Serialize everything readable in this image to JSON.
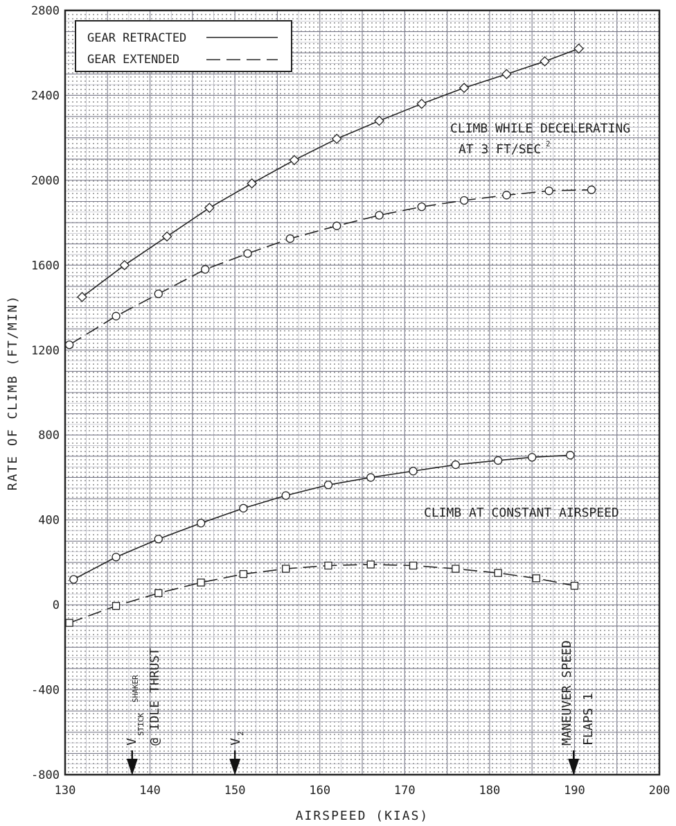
{
  "chart_data": {
    "type": "line",
    "xlabel": "AIRSPEED (KIAS)",
    "ylabel": "RATE OF CLIMB (FT/MIN)",
    "xlim": [
      130,
      200
    ],
    "ylim": [
      -800,
      2800
    ],
    "x_ticks": [
      "130",
      "140",
      "150",
      "160",
      "170",
      "180",
      "190",
      "200"
    ],
    "y_ticks": [
      "-800",
      "-400",
      "0",
      "400",
      "800",
      "1200",
      "1600",
      "2000",
      "2400",
      "2800"
    ],
    "grid": true,
    "legend_position": "top-left",
    "legend": [
      {
        "label": "GEAR RETRACTED",
        "style": "solid"
      },
      {
        "label": "GEAR EXTENDED",
        "style": "dashed"
      }
    ],
    "annotations": {
      "decel_line1": "CLIMB WHILE DECELERATING",
      "decel_line2": "AT 3 FT/SEC",
      "decel_sup": "2",
      "constant": "CLIMB AT CONSTANT AIRSPEED",
      "v_stick": "V",
      "v_stick_sub1": "STICK",
      "v_stick_sub2": "SHAKER",
      "idle_thrust": "@ IDLE THRUST",
      "v2": "V",
      "v2_sub": "2",
      "maneuver": "MANEUVER SPEED",
      "flaps": "FLAPS 1"
    },
    "arrows": [
      137.9,
      150,
      189.9
    ],
    "series": [
      {
        "name": "GEAR RETRACTED",
        "group": "CLIMB WHILE DECELERATING",
        "style": "solid",
        "marker": "diamond",
        "x": [
          132,
          137,
          142,
          147,
          152,
          157,
          162,
          167,
          172,
          177,
          182,
          186.5,
          190.5
        ],
        "values": [
          1450,
          1600,
          1735,
          1870,
          1985,
          2095,
          2195,
          2280,
          2360,
          2435,
          2500,
          2560,
          2620
        ]
      },
      {
        "name": "GEAR EXTENDED",
        "group": "CLIMB WHILE DECELERATING",
        "style": "dashed",
        "marker": "circle",
        "x": [
          130.5,
          136,
          141,
          146.5,
          151.5,
          156.5,
          162,
          167,
          172,
          177,
          182,
          187,
          192
        ],
        "values": [
          1225,
          1360,
          1465,
          1580,
          1655,
          1725,
          1785,
          1835,
          1875,
          1905,
          1930,
          1950,
          1955
        ]
      },
      {
        "name": "GEAR RETRACTED",
        "group": "CLIMB AT CONSTANT AIRSPEED",
        "style": "solid",
        "marker": "circle",
        "x": [
          131,
          136,
          141,
          146,
          151,
          156,
          161,
          166,
          171,
          176,
          181,
          185,
          189.5
        ],
        "values": [
          120,
          225,
          310,
          385,
          455,
          515,
          565,
          600,
          630,
          660,
          680,
          695,
          705
        ]
      },
      {
        "name": "GEAR EXTENDED",
        "group": "CLIMB AT CONSTANT AIRSPEED",
        "style": "dashed",
        "marker": "square",
        "x": [
          130.5,
          136,
          141,
          146,
          151,
          156,
          161,
          166,
          171,
          176,
          181,
          185.5,
          190
        ],
        "values": [
          -85,
          -5,
          55,
          105,
          145,
          170,
          185,
          190,
          185,
          170,
          150,
          125,
          90
        ]
      }
    ]
  }
}
